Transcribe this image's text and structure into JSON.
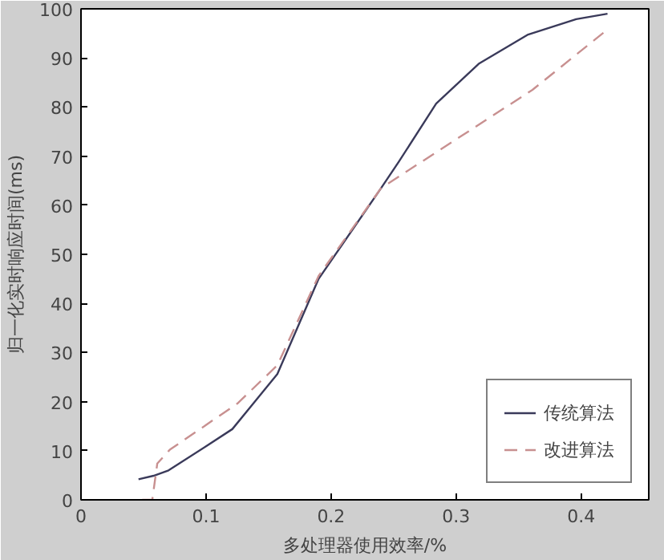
{
  "chart_data": {
    "type": "line",
    "xlabel": "多处理器使用效率/%",
    "ylabel": "归一化实时响应时间(ms)",
    "xlim": [
      0,
      0.454
    ],
    "ylim": [
      0,
      100
    ],
    "xticks": [
      0,
      0.1,
      0.2,
      0.3,
      0.4
    ],
    "yticks": [
      0,
      10,
      20,
      30,
      40,
      50,
      60,
      70,
      80,
      90,
      100
    ],
    "grid": false,
    "legend": "bottom right",
    "series": [
      {
        "name": "传统算法",
        "color": "#3a3a5a",
        "line_style": "solid",
        "x": [
          0.046,
          0.058,
          0.07,
          0.1,
          0.121,
          0.157,
          0.19,
          0.24,
          0.254,
          0.284,
          0.318,
          0.357,
          0.396,
          0.421
        ],
        "values": [
          4.2,
          4.9,
          6,
          10.9,
          14.4,
          25.6,
          45,
          63.5,
          68.8,
          80.7,
          88.8,
          94.7,
          97.9,
          99
        ]
      },
      {
        "name": "改进算法",
        "color": "#c89090",
        "line_style": "dashed",
        "x": [
          0.049,
          0.057,
          0.061,
          0.071,
          0.125,
          0.157,
          0.19,
          0.24,
          0.361,
          0.421
        ],
        "values": [
          0,
          0,
          7.4,
          10.2,
          19.6,
          27.4,
          45.6,
          63.5,
          83.5,
          95.8
        ]
      }
    ]
  }
}
